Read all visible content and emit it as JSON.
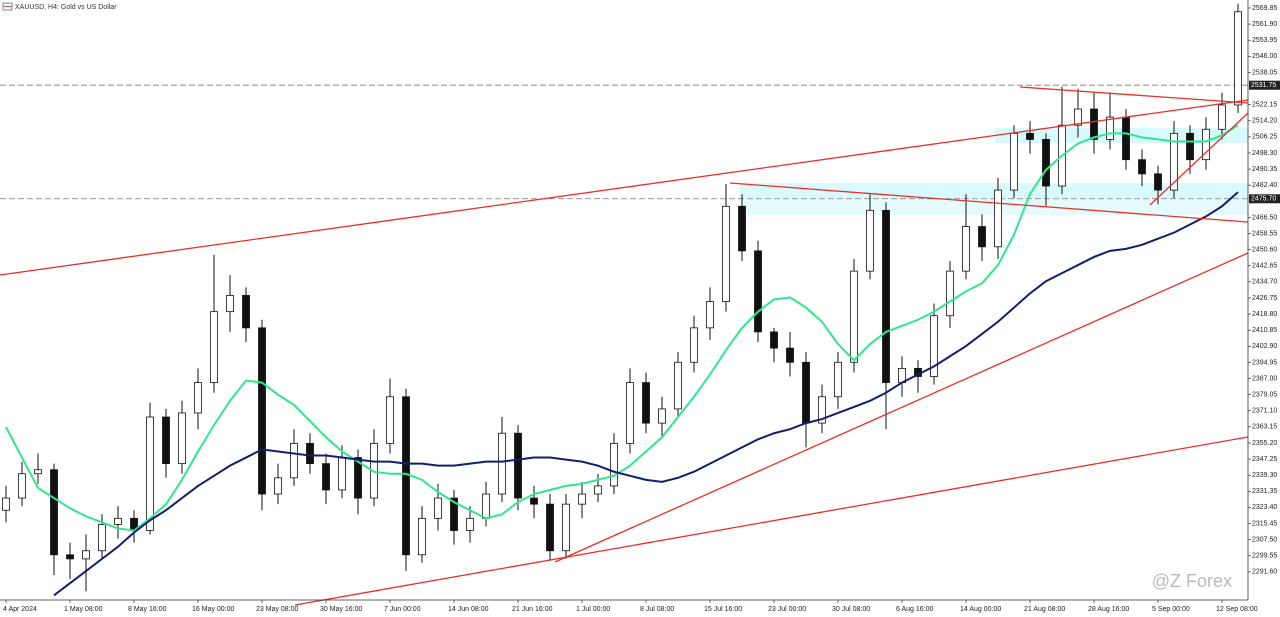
{
  "chart_data": {
    "type": "candlestick",
    "title": "XAUUSD, H4: Gold vs US Dollar",
    "watermark": "@Z Forex",
    "categories": [
      "4 Apr 2024",
      null,
      null,
      null,
      "1 May 08:00",
      null,
      null,
      null,
      "8 May 16:00",
      null,
      null,
      null,
      "16 May 00:00",
      null,
      null,
      null,
      "23 May 08:00",
      null,
      null,
      null,
      "30 May 16:00",
      null,
      null,
      null,
      "7 Jun 00:00",
      null,
      null,
      null,
      "14 Jun 08:00",
      null,
      null,
      null,
      "21 Jun 16:00",
      null,
      null,
      null,
      "1 Jul 00:00",
      null,
      null,
      null,
      "8 Jul 08:00",
      null,
      null,
      null,
      "15 Jul 16:00",
      null,
      null,
      null,
      "23 Jul 00:00",
      null,
      null,
      null,
      "30 Jul 08:00",
      null,
      null,
      null,
      "6 Aug 16:00",
      null,
      null,
      null,
      "14 Aug 00:00",
      null,
      null,
      null,
      "21 Aug 08:00",
      null,
      null,
      null,
      "28 Aug 16:00",
      null,
      null,
      null,
      "5 Sep 00:00",
      null,
      null,
      null,
      "12 Sep 08:00",
      null
    ],
    "ohlc": [
      [
        2322,
        2334,
        2316,
        2328
      ],
      [
        2328,
        2346,
        2324,
        2340
      ],
      [
        2340,
        2350,
        2335,
        2342
      ],
      [
        2342,
        2345,
        2290,
        2300
      ],
      [
        2300,
        2306,
        2288,
        2298
      ],
      [
        2298,
        2310,
        2282,
        2302
      ],
      [
        2302,
        2320,
        2298,
        2315
      ],
      [
        2315,
        2324,
        2308,
        2318
      ],
      [
        2318,
        2322,
        2306,
        2312
      ],
      [
        2312,
        2375,
        2310,
        2368
      ],
      [
        2368,
        2372,
        2338,
        2345
      ],
      [
        2345,
        2376,
        2340,
        2370
      ],
      [
        2370,
        2392,
        2362,
        2385
      ],
      [
        2385,
        2448,
        2380,
        2420
      ],
      [
        2420,
        2438,
        2410,
        2428
      ],
      [
        2428,
        2432,
        2405,
        2412
      ],
      [
        2412,
        2416,
        2322,
        2330
      ],
      [
        2330,
        2345,
        2325,
        2338
      ],
      [
        2338,
        2362,
        2334,
        2355
      ],
      [
        2355,
        2360,
        2340,
        2345
      ],
      [
        2345,
        2350,
        2325,
        2332
      ],
      [
        2332,
        2354,
        2328,
        2348
      ],
      [
        2348,
        2352,
        2320,
        2328
      ],
      [
        2328,
        2362,
        2324,
        2355
      ],
      [
        2355,
        2387,
        2350,
        2378
      ],
      [
        2378,
        2382,
        2292,
        2300
      ],
      [
        2300,
        2324,
        2296,
        2318
      ],
      [
        2318,
        2335,
        2312,
        2328
      ],
      [
        2328,
        2332,
        2305,
        2312
      ],
      [
        2312,
        2324,
        2306,
        2318
      ],
      [
        2318,
        2336,
        2314,
        2330
      ],
      [
        2330,
        2368,
        2326,
        2360
      ],
      [
        2360,
        2364,
        2322,
        2328
      ],
      [
        2328,
        2334,
        2318,
        2325
      ],
      [
        2325,
        2330,
        2297,
        2302
      ],
      [
        2302,
        2330,
        2298,
        2325
      ],
      [
        2325,
        2336,
        2318,
        2330
      ],
      [
        2330,
        2340,
        2326,
        2334
      ],
      [
        2334,
        2360,
        2330,
        2355
      ],
      [
        2355,
        2392,
        2350,
        2385
      ],
      [
        2385,
        2390,
        2360,
        2365
      ],
      [
        2365,
        2378,
        2358,
        2372
      ],
      [
        2372,
        2400,
        2368,
        2395
      ],
      [
        2395,
        2418,
        2390,
        2412
      ],
      [
        2412,
        2432,
        2406,
        2425
      ],
      [
        2425,
        2483,
        2420,
        2472
      ],
      [
        2472,
        2478,
        2445,
        2450
      ],
      [
        2450,
        2455,
        2405,
        2410
      ],
      [
        2410,
        2412,
        2395,
        2402
      ],
      [
        2402,
        2410,
        2388,
        2395
      ],
      [
        2395,
        2400,
        2353,
        2365
      ],
      [
        2365,
        2384,
        2360,
        2378
      ],
      [
        2378,
        2400,
        2372,
        2395
      ],
      [
        2395,
        2446,
        2390,
        2440
      ],
      [
        2440,
        2478,
        2436,
        2470
      ],
      [
        2470,
        2474,
        2362,
        2385
      ],
      [
        2385,
        2398,
        2378,
        2392
      ],
      [
        2392,
        2396,
        2380,
        2388
      ],
      [
        2388,
        2424,
        2384,
        2418
      ],
      [
        2418,
        2445,
        2412,
        2440
      ],
      [
        2440,
        2478,
        2436,
        2462
      ],
      [
        2462,
        2468,
        2445,
        2452
      ],
      [
        2452,
        2486,
        2446,
        2480
      ],
      [
        2480,
        2512,
        2476,
        2508
      ],
      [
        2508,
        2514,
        2498,
        2505
      ],
      [
        2505,
        2508,
        2472,
        2482
      ],
      [
        2482,
        2531,
        2478,
        2512
      ],
      [
        2512,
        2530,
        2506,
        2520
      ],
      [
        2520,
        2528,
        2498,
        2505
      ],
      [
        2505,
        2528,
        2500,
        2516
      ],
      [
        2516,
        2520,
        2490,
        2495
      ],
      [
        2495,
        2500,
        2482,
        2488
      ],
      [
        2488,
        2492,
        2473,
        2480
      ],
      [
        2480,
        2514,
        2476,
        2508
      ],
      [
        2508,
        2512,
        2488,
        2495
      ],
      [
        2495,
        2516,
        2490,
        2510
      ],
      [
        2510,
        2528,
        2505,
        2522
      ],
      [
        2522,
        2572,
        2518,
        2568
      ]
    ],
    "overlays": [
      {
        "color": "#2ee88a",
        "values": [
          2363,
          2348,
          2333,
          2328,
          2323,
          2319,
          2316,
          2313,
          2312,
          2318,
          2325,
          2337,
          2351,
          2364,
          2376,
          2386,
          2385,
          2379,
          2374,
          2366,
          2358,
          2351,
          2346,
          2341,
          2340,
          2340,
          2337,
          2331,
          2326,
          2322,
          2318,
          2320,
          2326,
          2330,
          2332,
          2334,
          2335,
          2337,
          2339,
          2344,
          2351,
          2358,
          2368,
          2378,
          2389,
          2401,
          2412,
          2420,
          2426,
          2427,
          2422,
          2415,
          2404,
          2396,
          2404,
          2410,
          2413,
          2416,
          2420,
          2425,
          2430,
          2434,
          2443,
          2458,
          2478,
          2490,
          2497,
          2503,
          2506,
          2508,
          2508,
          2506,
          2505,
          2504,
          2504,
          2504,
          2507,
          2512
        ]
      },
      {
        "color": "#141e6e",
        "values": [
          null,
          null,
          null,
          2280,
          2286,
          2292,
          2298,
          2304,
          2311,
          2317,
          2322,
          2328,
          2334,
          2339,
          2344,
          2348,
          2352,
          2351,
          2350,
          2349,
          2349,
          2348,
          2347,
          2346,
          2346,
          2345,
          2345,
          2344,
          2344,
          2345,
          2346,
          2346,
          2347,
          2348,
          2348,
          2347,
          2346,
          2344,
          2341,
          2339,
          2337,
          2336,
          2338,
          2341,
          2345,
          2349,
          2353,
          2357,
          2360,
          2362,
          2365,
          2367,
          2370,
          2373,
          2376,
          2380,
          2385,
          2389,
          2393,
          2398,
          2403,
          2409,
          2415,
          2422,
          2429,
          2435,
          2439,
          2443,
          2447,
          2450,
          2451,
          2453,
          2456,
          2459,
          2463,
          2467,
          2472,
          2479
        ]
      }
    ],
    "price_lines": [
      {
        "value": 2531.75,
        "label": "2531.75"
      },
      {
        "value": 2475.7,
        "label": "2475.70"
      }
    ],
    "ylim": [
      2277.7,
      2573.8
    ],
    "yticks": [
      2569.85,
      {
        "value": 2561.9,
        "label": "2561.90"
      },
      2553.95,
      {
        "value": 2546,
        "label": "2546.00"
      },
      2538.05,
      2522.15,
      {
        "value": 2514.2,
        "label": "2514.20"
      },
      2506.25,
      {
        "value": 2498.3,
        "label": "2498.30"
      },
      2490.35,
      {
        "value": 2482.4,
        "label": "2482.40"
      },
      {
        "value": 2466.5,
        "label": "2466.50"
      },
      2458.55,
      {
        "value": 2450.6,
        "label": "2450.60"
      },
      2442.65,
      {
        "value": 2434.7,
        "label": "2434.70"
      },
      2426.75,
      {
        "value": 2418.8,
        "label": "2418.80"
      },
      2410.85,
      {
        "value": 2402.9,
        "label": "2402.90"
      },
      2394.95,
      {
        "value": 2387,
        "label": "2387.00"
      },
      2379.05,
      {
        "value": 2371.1,
        "label": "2371.10"
      },
      2363.15,
      {
        "value": 2355.2,
        "label": "2355.20"
      },
      2347.25,
      {
        "value": 2339.3,
        "label": "2339.30"
      },
      2331.35,
      {
        "value": 2323.4,
        "label": "2323.40"
      },
      2315.45,
      {
        "value": 2307.5,
        "label": "2307.50"
      },
      2299.55,
      {
        "value": 2291.6,
        "label": "2291.60"
      }
    ]
  }
}
